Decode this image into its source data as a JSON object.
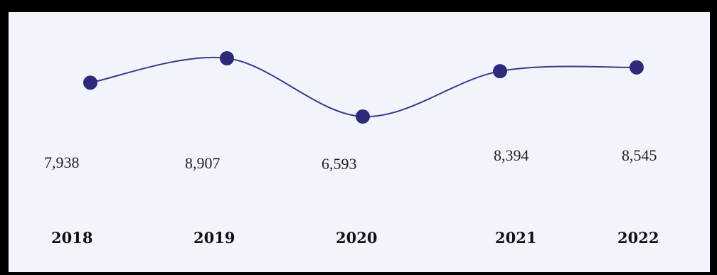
{
  "chart_data": {
    "type": "line",
    "categories": [
      "2018",
      "2019",
      "2020",
      "2021",
      "2022"
    ],
    "values": [
      7938,
      8907,
      6593,
      8394,
      8545
    ],
    "value_labels": [
      "7,938",
      "8,907",
      "6,593",
      "8,394",
      "8,545"
    ],
    "title": "",
    "xlabel": "",
    "ylabel": "",
    "grid": false,
    "line_color": "#3b3a8c",
    "point_color": "#2e2a7a"
  }
}
